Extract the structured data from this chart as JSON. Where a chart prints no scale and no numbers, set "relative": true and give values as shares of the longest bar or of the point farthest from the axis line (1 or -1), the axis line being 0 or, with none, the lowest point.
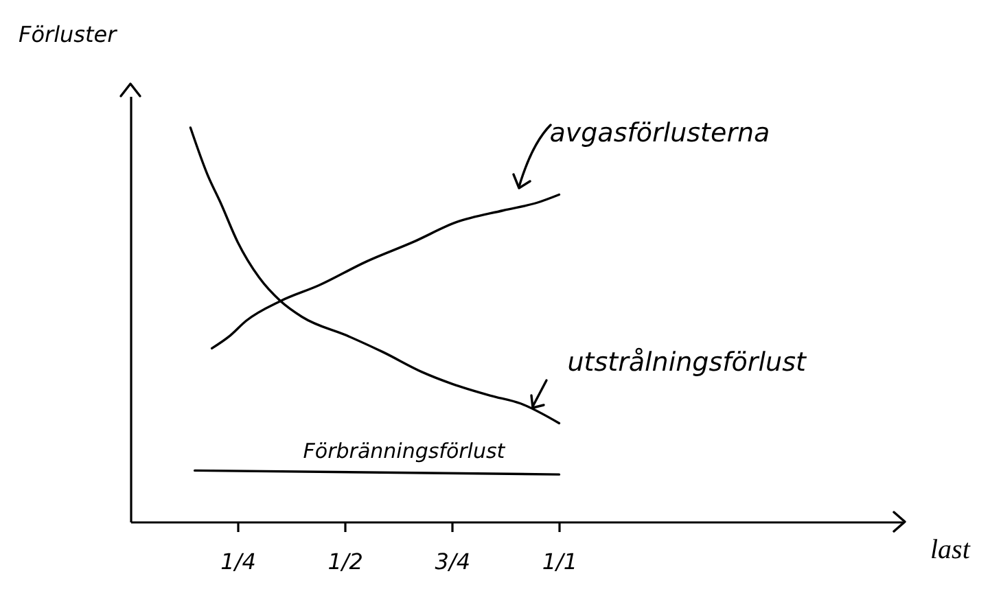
{
  "chart_data": {
    "type": "line",
    "relative": true,
    "xlabel": "last",
    "ylabel": "Förluster",
    "xlim": [
      0,
      1.8
    ],
    "xticks": [
      {
        "value": 0.25,
        "label": "1/4"
      },
      {
        "value": 0.5,
        "label": "1/2"
      },
      {
        "value": 0.75,
        "label": "3/4"
      },
      {
        "value": 1,
        "label": "1/1"
      }
    ],
    "series": [
      {
        "name": "avgasförlusterna",
        "color": "#000000",
        "x": [
          0.19,
          0.23,
          0.27,
          0.35,
          0.44,
          0.55,
          0.66,
          0.76,
          0.87,
          0.95,
          1.0
        ],
        "values": [
          0.44,
          0.47,
          0.51,
          0.56,
          0.6,
          0.66,
          0.71,
          0.76,
          0.79,
          0.81,
          0.83
        ]
      },
      {
        "name": "utstrålningsförlust",
        "color": "#000000",
        "x": [
          0.14,
          0.18,
          0.21,
          0.25,
          0.3,
          0.35,
          0.4,
          0.51,
          0.59,
          0.68,
          0.75,
          0.84,
          0.91,
          1.0
        ],
        "values": [
          1.0,
          0.88,
          0.81,
          0.71,
          0.62,
          0.56,
          0.52,
          0.47,
          0.43,
          0.38,
          0.35,
          0.32,
          0.3,
          0.25
        ]
      },
      {
        "name": "Förbränningsförlust",
        "color": "#000000",
        "x": [
          0.15,
          1.0
        ],
        "values": [
          0.13,
          0.12
        ]
      }
    ]
  }
}
